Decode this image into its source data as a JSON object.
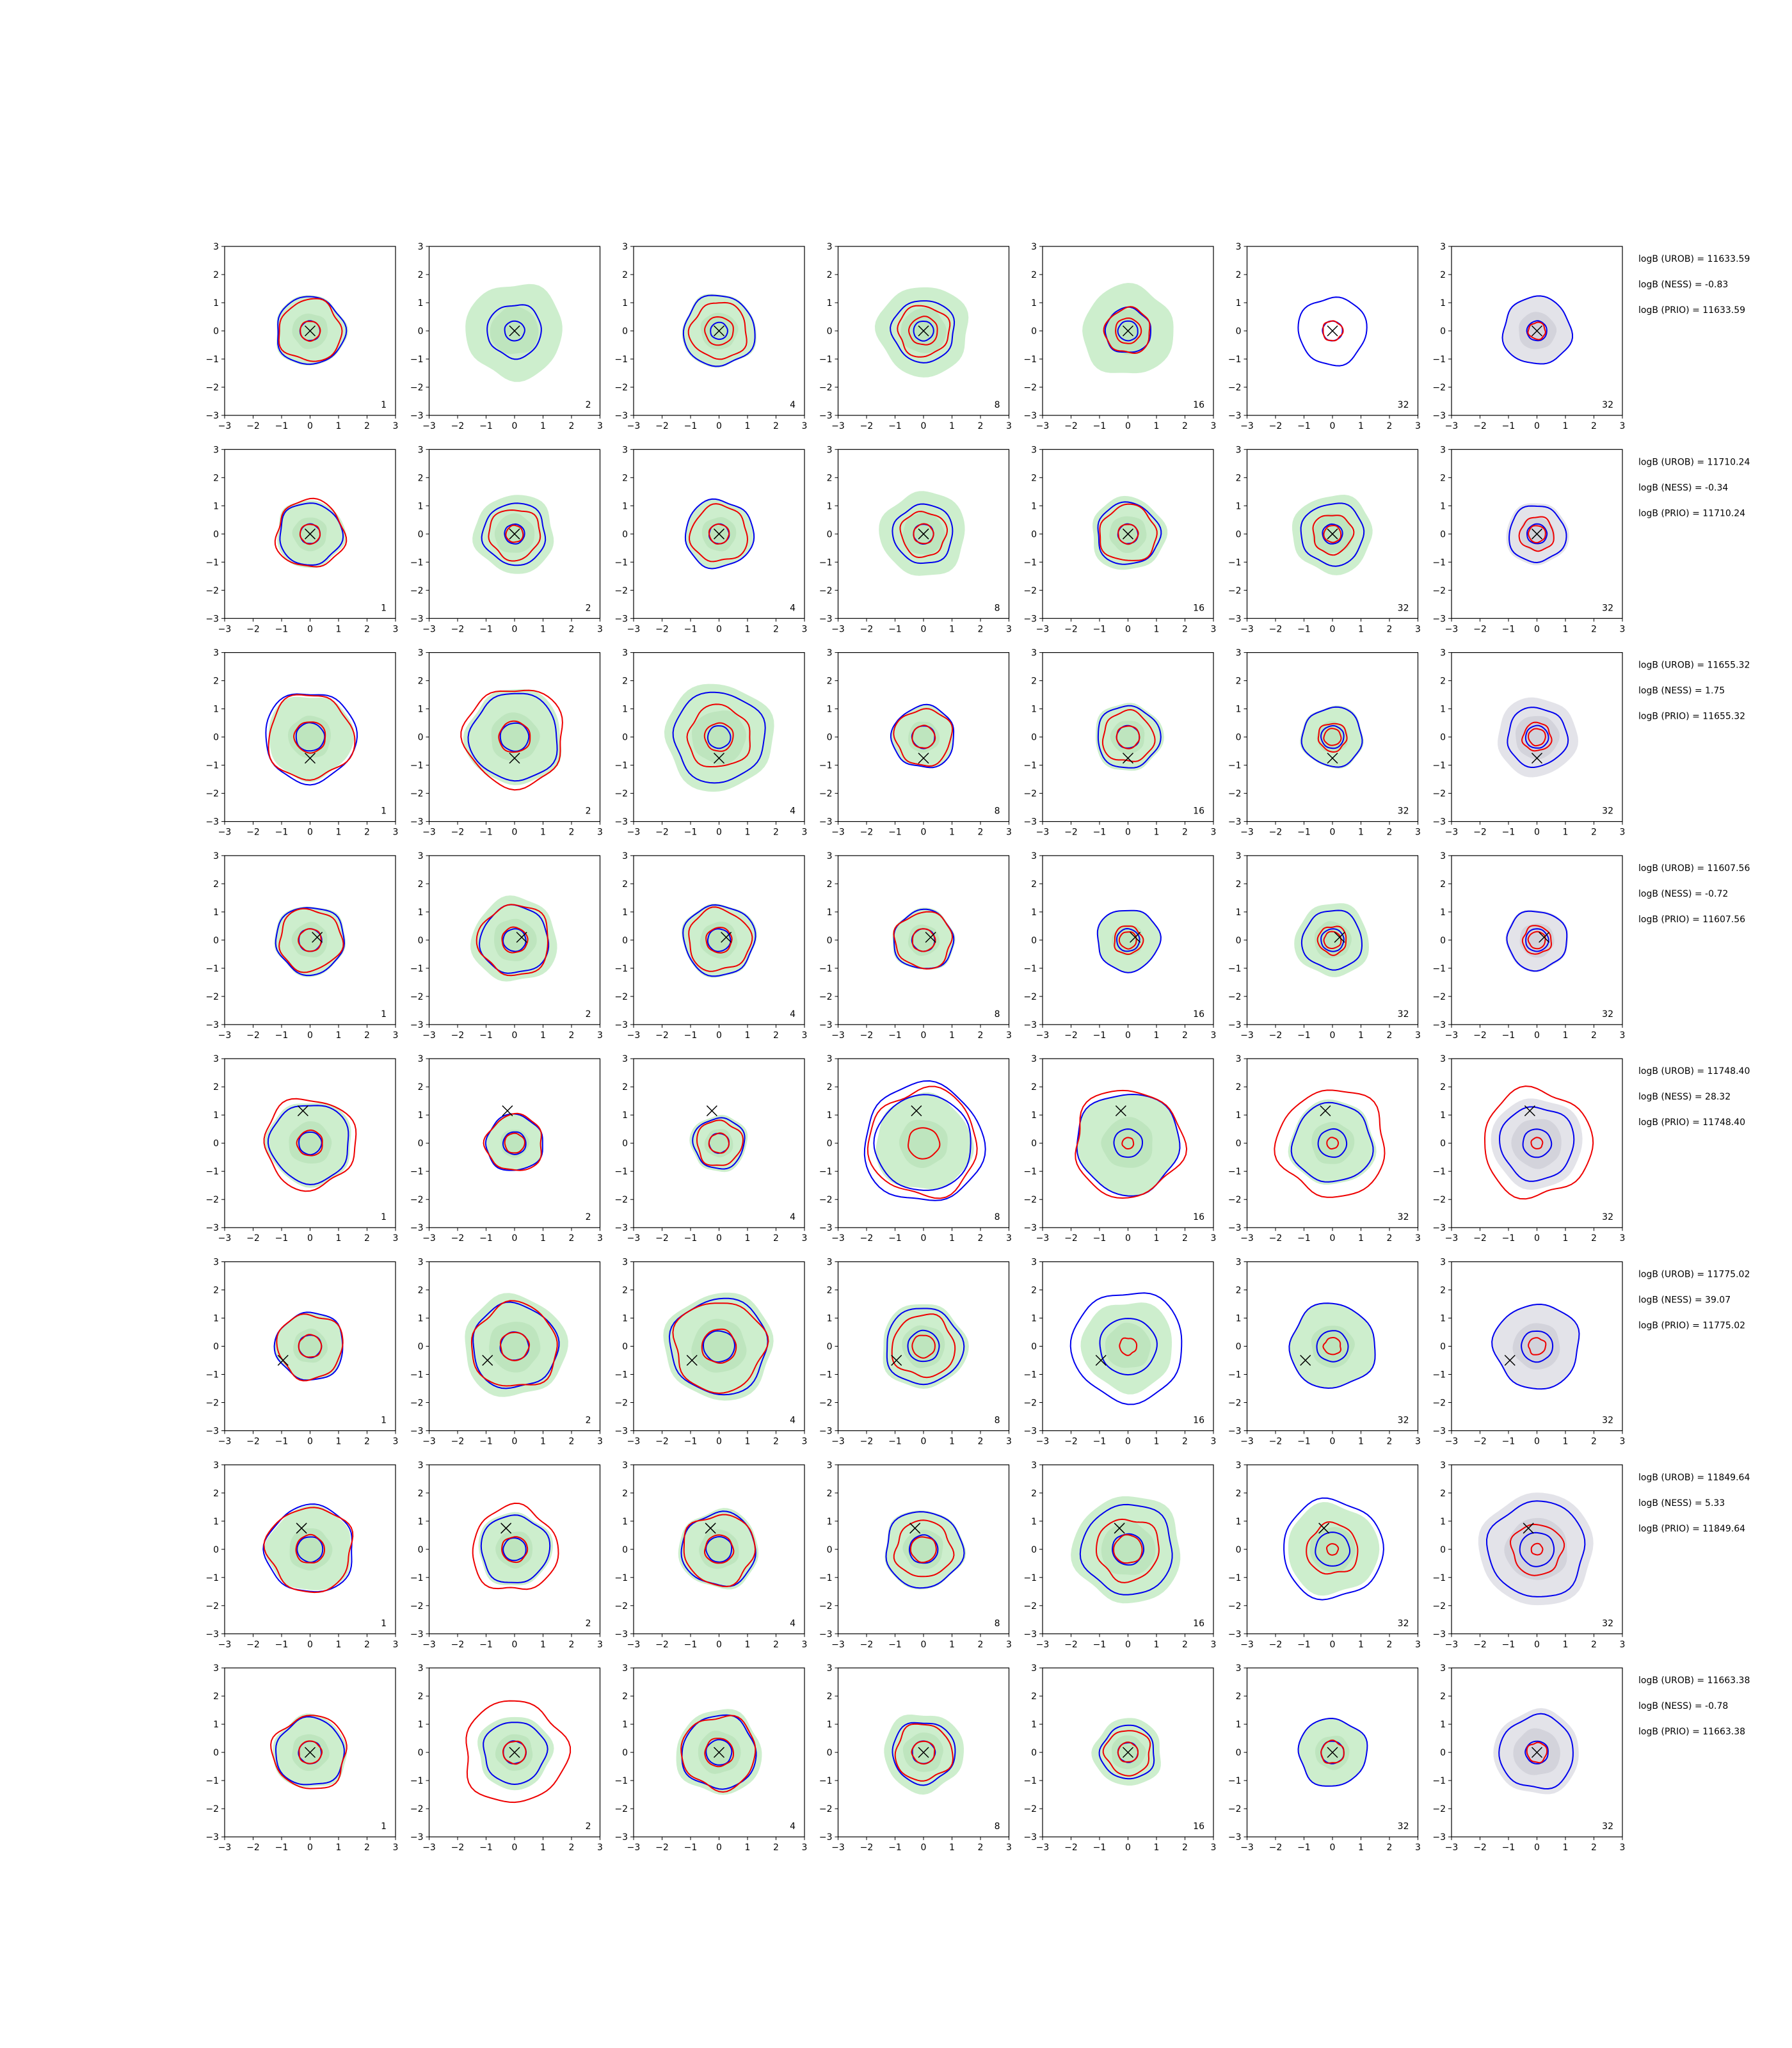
{
  "chart_data": {
    "type": "contour-grid",
    "xlim": [
      -3,
      3
    ],
    "ylim": [
      -3,
      3
    ],
    "ticks": [
      "−3",
      "−2",
      "−1",
      "0",
      "1",
      "2",
      "3"
    ],
    "column_labels": [
      "1",
      "2",
      "4",
      "8",
      "16",
      "32",
      "32"
    ],
    "colors": {
      "fill_green": "#cdeecd",
      "fill_green_dark": "#b4dfb4",
      "fill_grey": "#e3e3e9",
      "contour_blue": "#0000ee",
      "contour_red": "#ee0000",
      "marker": "#000000"
    },
    "rows": [
      {
        "stats": [
          "logB (UROB) = 11633.59",
          "logB (NESS) = -0.83",
          "logB (PRIO) = 11633.59"
        ],
        "marker": [
          0,
          0
        ],
        "panels": [
          {
            "fill": 1.25,
            "blue": [
              1.2,
              0.35
            ],
            "red": [
              1.1,
              0.35
            ]
          },
          {
            "fill": 1.7,
            "blue": [
              0.95,
              0.35
            ],
            "red": []
          },
          {
            "fill": 1.3,
            "blue": [
              1.25,
              0.3
            ],
            "red": [
              1.0,
              0.5
            ]
          },
          {
            "fill": 1.6,
            "blue": [
              1.1,
              0.35
            ],
            "red": [
              0.9,
              0.5
            ]
          },
          {
            "fill": 1.6,
            "blue": [
              0.8,
              0.35
            ],
            "red": [
              0.8,
              0.45
            ]
          },
          {
            "fill": 0,
            "blue": [
              1.2,
              0.35
            ],
            "red": [
              0.35
            ]
          },
          {
            "fill": 0,
            "grey": 1.2,
            "blue": [
              1.2,
              0.35
            ],
            "red": [
              0.3
            ]
          }
        ]
      },
      {
        "stats": [
          "logB (UROB) = 11710.24",
          "logB (NESS) = -0.34",
          "logB (PRIO) = 11710.24"
        ],
        "marker": [
          0,
          0
        ],
        "panels": [
          {
            "fill": 1.2,
            "blue": [
              1.1,
              0.35
            ],
            "red": [
              1.2,
              0.35
            ]
          },
          {
            "fill": 1.4,
            "blue": [
              1.1,
              0.35
            ],
            "red": [
              0.9,
              0.3
            ]
          },
          {
            "fill": 1.2,
            "blue": [
              1.2,
              0.35
            ],
            "red": [
              1.0,
              0.35
            ]
          },
          {
            "fill": 1.5,
            "blue": [
              1.05,
              0.35
            ],
            "red": [
              0.8,
              0.35
            ]
          },
          {
            "fill": 1.3,
            "blue": [
              1.1,
              0.35
            ],
            "red": [
              1.0,
              0.35
            ]
          },
          {
            "fill": 1.4,
            "blue": [
              1.1,
              0.35
            ],
            "red": [
              0.7,
              0.3
            ]
          },
          {
            "fill": 0,
            "grey": 1.1,
            "blue": [
              1.0,
              0.35
            ],
            "red": [
              0.6,
              0.3
            ]
          }
        ]
      },
      {
        "stats": [
          "logB (UROB) = 11655.32",
          "logB (NESS) = 1.75",
          "logB (PRIO) = 11655.32"
        ],
        "marker": [
          0,
          -0.75
        ],
        "panels": [
          {
            "fill": 1.5,
            "blue": [
              1.6,
              0.5
            ],
            "red": [
              1.5,
              0.55
            ]
          },
          {
            "fill": 1.7,
            "blue": [
              1.55,
              0.5
            ],
            "red": [
              1.75,
              0.55
            ]
          },
          {
            "fill": 1.9,
            "blue": [
              1.6,
              0.4
            ],
            "red": [
              1.1,
              0.5
            ]
          },
          {
            "fill": 1.1,
            "blue": [
              1.1,
              0.4
            ],
            "red": [
              1.0,
              0.4
            ]
          },
          {
            "fill": 1.2,
            "blue": [
              1.1,
              0.4
            ],
            "red": [
              0.9,
              0.4
            ]
          },
          {
            "fill": 1.1,
            "blue": [
              1.05,
              0.4
            ],
            "red": [
              0.5,
              0.3
            ]
          },
          {
            "fill": 0,
            "grey": 1.4,
            "blue": [
              1.05,
              0.4
            ],
            "red": [
              0.5,
              0.3
            ]
          }
        ]
      },
      {
        "stats": [
          "logB (UROB) = 11607.56",
          "logB (NESS) = -0.72",
          "logB (PRIO) = 11607.56"
        ],
        "marker": [
          0.25,
          0.1
        ],
        "panels": [
          {
            "fill": 1.25,
            "blue": [
              1.2,
              0.4
            ],
            "red": [
              1.1,
              0.4
            ]
          },
          {
            "fill": 1.5,
            "blue": [
              1.2,
              0.4
            ],
            "red": [
              1.25,
              0.45
            ]
          },
          {
            "fill": 1.3,
            "blue": [
              1.25,
              0.4
            ],
            "red": [
              1.1,
              0.45
            ]
          },
          {
            "fill": 1.1,
            "blue": [
              1.05,
              0.4
            ],
            "red": [
              1.0,
              0.4
            ]
          },
          {
            "fill": 1.1,
            "blue": [
              1.1,
              0.4
            ],
            "red": [
              0.5,
              0.3
            ]
          },
          {
            "fill": 1.3,
            "blue": [
              1.05,
              0.4
            ],
            "red": [
              0.5,
              0.3
            ]
          },
          {
            "fill": 0,
            "grey": 1.1,
            "blue": [
              1.05,
              0.4
            ],
            "red": [
              0.5,
              0.3
            ]
          }
        ]
      },
      {
        "stats": [
          "logB (UROB) = 11748.40",
          "logB (NESS) = 28.32",
          "logB (PRIO) = 11748.40"
        ],
        "marker": [
          -0.25,
          1.15
        ],
        "panels": [
          {
            "fill": 1.5,
            "blue": [
              1.4,
              0.4
            ],
            "red": [
              1.6,
              0.45
            ]
          },
          {
            "fill": 1.0,
            "blue": [
              1.0,
              0.4
            ],
            "red": [
              1.0,
              0.35
            ]
          },
          {
            "fill": 1.0,
            "blue": [
              0.9,
              0.35
            ],
            "red": [
              0.8,
              0.35
            ]
          },
          {
            "fill": 1.7,
            "blue": [
              2.1,
              1.7
            ],
            "red": [
              1.9,
              0.55
            ]
          },
          {
            "fill": 1.8,
            "blue": [
              1.8,
              0.5
            ],
            "red": [
              1.9,
              0.2
            ]
          },
          {
            "fill": 1.5,
            "blue": [
              1.4,
              0.5
            ],
            "red": [
              1.9,
              0.2
            ]
          },
          {
            "fill": 0,
            "grey": 1.6,
            "blue": [
              1.3,
              0.5
            ],
            "red": [
              1.9,
              0.2
            ]
          }
        ]
      },
      {
        "stats": [
          "logB (UROB) = 11775.02",
          "logB (NESS) = 39.07",
          "logB (PRIO) = 11775.02"
        ],
        "marker": [
          -0.95,
          -0.5
        ],
        "panels": [
          {
            "fill": 1.2,
            "blue": [
              1.2,
              0.4
            ],
            "red": [
              1.15,
              0.4
            ]
          },
          {
            "fill": 1.8,
            "blue": [
              1.5,
              0.5
            ],
            "red": [
              1.5,
              0.5
            ]
          },
          {
            "fill": 1.9,
            "blue": [
              1.7,
              0.55
            ],
            "red": [
              1.6,
              0.6
            ]
          },
          {
            "fill": 1.5,
            "blue": [
              1.35,
              0.55
            ],
            "red": [
              1.1,
              0.4
            ]
          },
          {
            "fill": 1.6,
            "blue": [
              1.95,
              1.0
            ],
            "red": [
              0.3
            ]
          },
          {
            "fill": 1.5,
            "blue": [
              1.5,
              0.55
            ],
            "red": [
              0.3
            ]
          },
          {
            "fill": 0,
            "grey": 1.5,
            "blue": [
              1.5,
              0.55
            ],
            "red": [
              0.3
            ]
          }
        ]
      },
      {
        "stats": [
          "logB (UROB) = 11849.64",
          "logB (NESS) = 5.33",
          "logB (PRIO) = 11849.64"
        ],
        "marker": [
          -0.3,
          0.75
        ],
        "panels": [
          {
            "fill": 1.5,
            "blue": [
              1.55,
              0.45
            ],
            "red": [
              1.5,
              0.5
            ]
          },
          {
            "fill": 1.3,
            "blue": [
              1.2,
              0.4
            ],
            "red": [
              1.5,
              0.45
            ]
          },
          {
            "fill": 1.4,
            "blue": [
              1.3,
              0.45
            ],
            "red": [
              1.25,
              0.5
            ]
          },
          {
            "fill": 1.4,
            "blue": [
              1.35,
              0.5
            ],
            "red": [
              1.0,
              0.45
            ]
          },
          {
            "fill": 1.9,
            "blue": [
              1.6,
              0.55
            ],
            "red": [
              1.1,
              0.5
            ]
          },
          {
            "fill": 1.6,
            "blue": [
              1.75,
              0.6
            ],
            "red": [
              0.9,
              0.2
            ]
          },
          {
            "fill": 0,
            "grey": 2.0,
            "blue": [
              1.7,
              0.6
            ],
            "red": [
              0.9,
              0.2
            ]
          }
        ]
      },
      {
        "stats": [
          "logB (UROB) = 11663.38",
          "logB (NESS) = -0.78",
          "logB (PRIO) = 11663.38"
        ],
        "marker": [
          0,
          0
        ],
        "panels": [
          {
            "fill": 1.3,
            "blue": [
              1.2,
              0.4
            ],
            "red": [
              1.3,
              0.4
            ]
          },
          {
            "fill": 1.3,
            "blue": [
              1.1,
              0.4
            ],
            "red": [
              1.8,
              0.4
            ]
          },
          {
            "fill": 1.5,
            "blue": [
              1.3,
              0.45
            ],
            "red": [
              1.3,
              0.5
            ]
          },
          {
            "fill": 1.4,
            "blue": [
              1.1,
              0.4
            ],
            "red": [
              1.0,
              0.4
            ]
          },
          {
            "fill": 1.2,
            "blue": [
              0.95,
              0.35
            ],
            "red": [
              0.8,
              0.35
            ]
          },
          {
            "fill": 1.2,
            "blue": [
              1.2,
              0.4
            ],
            "red": [
              0.4
            ]
          },
          {
            "fill": 0,
            "grey": 1.5,
            "blue": [
              1.3,
              0.4
            ],
            "red": [
              0.35
            ]
          }
        ]
      }
    ]
  }
}
